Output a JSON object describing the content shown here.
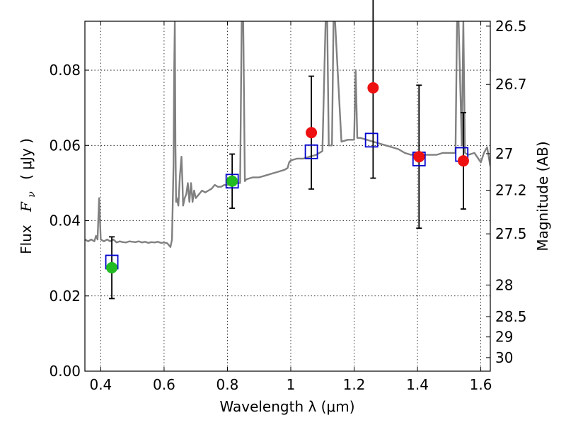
{
  "chart_data": {
    "type": "scatter",
    "title": "",
    "xlabel": "Wavelength  λ (μm)",
    "ylabel": "Flux  Fν  ( μJy )",
    "ylabel_parts": {
      "prefix": "Flux",
      "symbol": "F",
      "subscript": "ν",
      "unit": "( μJy )"
    },
    "y2label": "Magnitude (AB)",
    "xlim": [
      0.35,
      1.63
    ],
    "ylim": [
      0.0,
      0.093
    ],
    "grid": true,
    "x_ticks": [
      0.4,
      0.6,
      0.8,
      1.0,
      1.2,
      1.4,
      1.6
    ],
    "x_tick_labels": [
      "0.4",
      "0.6",
      "0.8",
      "1",
      "1.2",
      "1.4",
      "1.6"
    ],
    "y_ticks": [
      0.0,
      0.02,
      0.04,
      0.06,
      0.08
    ],
    "y_tick_labels": [
      "0.00",
      "0.02",
      "0.04",
      "0.06",
      "0.08"
    ],
    "y2_ticks": [
      {
        "label": "26.5",
        "flux": 0.0917
      },
      {
        "label": "26.7",
        "flux": 0.0762
      },
      {
        "label": "27",
        "flux": 0.0578
      },
      {
        "label": "27.2",
        "flux": 0.0481
      },
      {
        "label": "27.5",
        "flux": 0.0365
      },
      {
        "label": "28",
        "flux": 0.0229
      },
      {
        "label": "28.5",
        "flux": 0.0145
      },
      {
        "label": "29",
        "flux": 0.0091
      },
      {
        "label": "30",
        "flux": 0.0036
      }
    ],
    "series": [
      {
        "kind": "model_spectrum",
        "color": "#808080",
        "x": [
          0.35,
          0.36,
          0.37,
          0.38,
          0.385,
          0.39,
          0.395,
          0.4,
          0.41,
          0.42,
          0.43,
          0.44,
          0.45,
          0.46,
          0.47,
          0.48,
          0.49,
          0.5,
          0.51,
          0.52,
          0.53,
          0.54,
          0.55,
          0.56,
          0.57,
          0.58,
          0.59,
          0.6,
          0.61,
          0.62,
          0.625,
          0.63,
          0.632,
          0.634,
          0.636,
          0.638,
          0.64,
          0.645,
          0.65,
          0.655,
          0.658,
          0.66,
          0.665,
          0.67,
          0.675,
          0.68,
          0.685,
          0.69,
          0.695,
          0.7,
          0.71,
          0.72,
          0.73,
          0.74,
          0.75,
          0.76,
          0.77,
          0.78,
          0.79,
          0.8,
          0.82,
          0.84,
          0.845,
          0.85,
          0.855,
          0.86,
          0.88,
          0.9,
          0.92,
          0.94,
          0.96,
          0.98,
          0.99,
          0.995,
          1.0,
          1.02,
          1.04,
          1.06,
          1.08,
          1.1,
          1.11,
          1.115,
          1.12,
          1.13,
          1.135,
          1.14,
          1.16,
          1.18,
          1.2,
          1.205,
          1.21,
          1.22,
          1.24,
          1.26,
          1.28,
          1.3,
          1.32,
          1.34,
          1.36,
          1.38,
          1.4,
          1.42,
          1.44,
          1.46,
          1.48,
          1.5,
          1.52,
          1.525,
          1.53,
          1.54,
          1.545,
          1.55,
          1.56,
          1.58,
          1.6,
          1.61,
          1.62,
          1.63
        ],
        "y": [
          0.035,
          0.0345,
          0.035,
          0.0345,
          0.036,
          0.035,
          0.046,
          0.035,
          0.0345,
          0.035,
          0.0345,
          0.035,
          0.0342,
          0.0345,
          0.0343,
          0.0342,
          0.0345,
          0.0344,
          0.0343,
          0.0345,
          0.0342,
          0.0344,
          0.0341,
          0.0343,
          0.0342,
          0.0344,
          0.0341,
          0.0342,
          0.034,
          0.033,
          0.035,
          0.055,
          0.08,
          0.093,
          0.06,
          0.045,
          0.046,
          0.044,
          0.052,
          0.057,
          0.05,
          0.044,
          0.046,
          0.047,
          0.05,
          0.045,
          0.05,
          0.045,
          0.048,
          0.046,
          0.047,
          0.048,
          0.0475,
          0.048,
          0.0485,
          0.0495,
          0.049,
          0.049,
          0.0495,
          0.0495,
          0.05,
          0.05,
          0.093,
          0.093,
          0.0505,
          0.051,
          0.0515,
          0.0515,
          0.052,
          0.0525,
          0.053,
          0.0535,
          0.054,
          0.0555,
          0.056,
          0.0565,
          0.0565,
          0.057,
          0.0575,
          0.0585,
          0.093,
          0.093,
          0.06,
          0.06,
          0.093,
          0.093,
          0.061,
          0.0615,
          0.0615,
          0.08,
          0.062,
          0.062,
          0.0615,
          0.061,
          0.0605,
          0.06,
          0.0595,
          0.059,
          0.058,
          0.0575,
          0.058,
          0.0575,
          0.0575,
          0.0575,
          0.058,
          0.058,
          0.058,
          0.093,
          0.093,
          0.06,
          0.093,
          0.058,
          0.0575,
          0.058,
          0.0555,
          0.058,
          0.0595,
          0.0545
        ]
      },
      {
        "kind": "model_bandpass",
        "marker": "open-square",
        "color": "#0000cc",
        "x": [
          0.435,
          0.815,
          1.065,
          1.255,
          1.405,
          1.54
        ],
        "y": [
          0.029,
          0.0505,
          0.0583,
          0.0614,
          0.0564,
          0.0576
        ]
      },
      {
        "kind": "observed",
        "marker": "filled-circle",
        "x": [
          0.435,
          0.815,
          1.065,
          1.26,
          1.405,
          1.545
        ],
        "y": [
          0.0275,
          0.0505,
          0.0634,
          0.0753,
          0.057,
          0.0559
        ],
        "y_error": [
          0.0082,
          0.0072,
          0.015,
          0.024,
          0.019,
          0.0128
        ],
        "colors": [
          "#22bb22",
          "#22bb22",
          "#ee1111",
          "#ee1111",
          "#ee1111",
          "#ee1111"
        ]
      }
    ]
  }
}
